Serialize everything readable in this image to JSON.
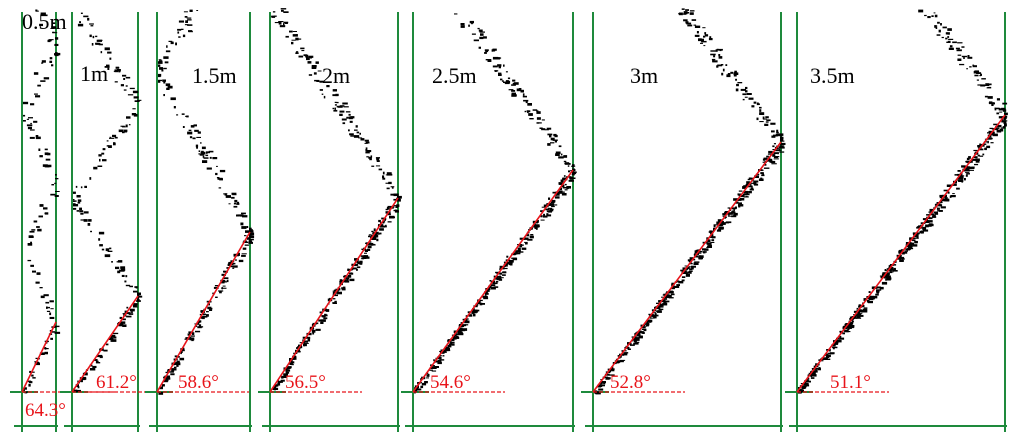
{
  "panels": [
    {
      "label": "0.5m",
      "angle": "64.3°"
    },
    {
      "label": "1m",
      "angle": "61.2°"
    },
    {
      "label": "1.5m",
      "angle": "58.6°"
    },
    {
      "label": "2m",
      "angle": "56.5°"
    },
    {
      "label": "2.5m",
      "angle": "54.6°"
    },
    {
      "label": "3m",
      "angle": "52.8°"
    },
    {
      "label": "3.5m",
      "angle": "51.1°"
    }
  ]
}
